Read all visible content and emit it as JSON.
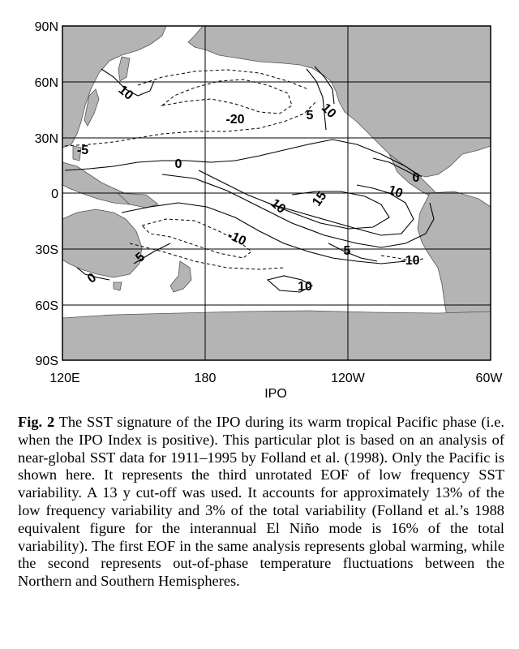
{
  "figure": {
    "y_ticks": [
      "90N",
      "60N",
      "30N",
      "0",
      "30S",
      "60S",
      "90S"
    ],
    "x_ticks": [
      "120E",
      "180",
      "120W",
      "60W"
    ],
    "x_axis_label": "IPO",
    "contour_labels": [
      {
        "value": "10"
      },
      {
        "value": "-20"
      },
      {
        "value": "5"
      },
      {
        "value": "10"
      },
      {
        "value": "-5"
      },
      {
        "value": "0"
      },
      {
        "value": "0"
      },
      {
        "value": "10"
      },
      {
        "value": "15"
      },
      {
        "value": "10"
      },
      {
        "value": "-10"
      },
      {
        "value": "5"
      },
      {
        "value": "5"
      },
      {
        "value": "-10"
      },
      {
        "value": "0"
      },
      {
        "value": "10"
      }
    ],
    "colors": {
      "land": "#b4b4b4",
      "ocean": "#ffffff",
      "contour": "#000000"
    }
  },
  "caption": {
    "label": "Fig. 2",
    "text": "The SST signature of the IPO during its warm tropical Pacific phase (i.e. when the IPO Index is positive). This particular plot is based on an analysis of near-global SST data for 1911–1995 by Folland et al. (1998). Only the Pacific is shown here. It represents the third unrotated EOF of low frequency SST variability. A 13 y cut-off was used. It accounts for approximately 13% of the low frequency variability and 3% of the total variability (Folland et al.’s 1988 equivalent figure for the interannual El Niño mode is 16% of the total variability). The first EOF in the same analysis represents global warming, while the second represents out-of-phase temperature fluctuations between the Northern and Southern Hemispheres."
  }
}
